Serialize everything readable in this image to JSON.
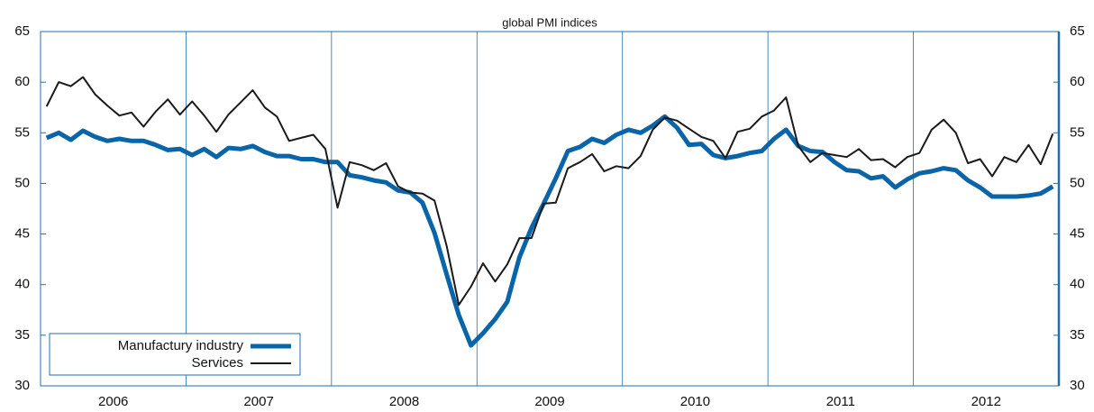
{
  "chart_data": {
    "type": "line",
    "subtitle": "global PMI indices",
    "categories": [
      null,
      null,
      null,
      null,
      null,
      null,
      "2006",
      null,
      null,
      null,
      null,
      null,
      null,
      null,
      null,
      null,
      null,
      null,
      "2007",
      null,
      null,
      null,
      null,
      null,
      null,
      null,
      null,
      null,
      null,
      null,
      "2008",
      null,
      null,
      null,
      null,
      null,
      null,
      null,
      null,
      null,
      null,
      null,
      "2009",
      null,
      null,
      null,
      null,
      null,
      null,
      null,
      null,
      null,
      null,
      null,
      "2010",
      null,
      null,
      null,
      null,
      null,
      null,
      null,
      null,
      null,
      null,
      null,
      "2011",
      null,
      null,
      null,
      null,
      null,
      null,
      null,
      null,
      null,
      null,
      null,
      "2012",
      null,
      null,
      null,
      null,
      null
    ],
    "series": [
      {
        "name": "Manufactury industry",
        "color": "#0a64a8",
        "values": [
          54.5,
          55.0,
          54.3,
          55.2,
          54.6,
          54.2,
          54.4,
          54.2,
          54.2,
          53.8,
          53.3,
          53.4,
          52.8,
          53.4,
          52.6,
          53.5,
          53.4,
          53.7,
          53.1,
          52.7,
          52.7,
          52.4,
          52.4,
          52.1,
          52.1,
          50.8,
          50.6,
          50.3,
          50.1,
          49.3,
          49.1,
          48.1,
          45.1,
          41.0,
          37.0,
          34.0,
          35.2,
          36.6,
          38.3,
          42.7,
          45.6,
          48.0,
          50.5,
          53.2,
          53.6,
          54.4,
          54.0,
          54.8,
          55.3,
          55.0,
          55.7,
          56.6,
          55.5,
          53.8,
          53.9,
          52.8,
          52.5,
          52.7,
          53.0,
          53.2,
          54.4,
          55.3,
          53.7,
          53.2,
          53.1,
          52.1,
          51.3,
          51.2,
          50.5,
          50.7,
          49.6,
          50.4,
          51.0,
          51.2,
          51.5,
          51.3,
          50.3,
          49.6,
          48.7,
          48.7,
          48.7,
          48.8,
          49.0,
          49.7
        ]
      },
      {
        "name": "Services",
        "color": "#1a1a1a",
        "values": [
          57.6,
          60.0,
          59.6,
          60.5,
          58.8,
          57.7,
          56.7,
          57.0,
          55.6,
          57.1,
          58.3,
          56.8,
          58.1,
          56.7,
          55.1,
          56.8,
          58.0,
          59.2,
          57.5,
          56.6,
          54.2,
          54.5,
          54.8,
          53.4,
          47.6,
          52.1,
          51.8,
          51.3,
          52.0,
          49.7,
          49.1,
          49.0,
          48.3,
          43.8,
          38.0,
          39.8,
          42.1,
          40.3,
          42.0,
          44.6,
          44.6,
          48.0,
          48.1,
          51.5,
          52.1,
          52.9,
          51.2,
          51.7,
          51.5,
          52.7,
          55.3,
          56.5,
          56.2,
          55.4,
          54.6,
          54.2,
          52.5,
          55.1,
          55.4,
          56.6,
          57.2,
          58.5,
          53.7,
          52.1,
          53.0,
          52.8,
          52.6,
          53.4,
          52.3,
          52.4,
          51.6,
          52.6,
          53.0,
          55.3,
          56.3,
          55.0,
          52.0,
          52.4,
          50.7,
          52.6,
          52.1,
          53.8,
          51.9,
          54.9
        ]
      }
    ],
    "ylim": [
      30,
      65
    ],
    "yticks": [
      30,
      35,
      40,
      45,
      50,
      55,
      60,
      65
    ],
    "y2lim": [
      30,
      65
    ],
    "y2ticks": [
      30,
      35,
      40,
      45,
      50,
      55,
      60,
      65
    ],
    "grid": true,
    "legend": "lower left"
  }
}
